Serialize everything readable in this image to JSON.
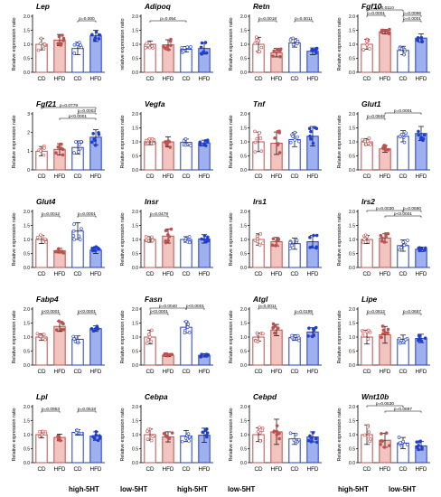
{
  "colors": {
    "cd_high": "#c0504d",
    "hfd_high": "#c0504d",
    "hfd_high_fill": "#f2c4c0",
    "cd_low": "#1f3fd0",
    "hfd_low": "#1f3fd0",
    "hfd_low_fill": "#9fb0f0",
    "axis": "#000000"
  },
  "group_labels": [
    "high-5HT",
    "low-5HT"
  ],
  "chart_data": [
    {
      "type": "bar",
      "title": "Lep",
      "ylabel": "Relative expression ratio",
      "categories": [
        "CD",
        "HFD",
        "CD",
        "HFD"
      ],
      "ylim": [
        0,
        2
      ],
      "yticks": [
        "0.0",
        "0.5",
        "1.0",
        "1.5",
        "2.0"
      ],
      "values": [
        1.0,
        1.15,
        0.85,
        1.3
      ],
      "errors": [
        0.2,
        0.2,
        0.22,
        0.2
      ],
      "annotations": [
        {
          "from": 2,
          "to": 3,
          "label": "p=0.000",
          "level": 0
        }
      ]
    },
    {
      "type": "bar",
      "title": "Adipoq",
      "ylabel": "relative expression ratio",
      "categories": [
        "CD",
        "HFD",
        "CD",
        "HFD"
      ],
      "ylim": [
        0,
        2
      ],
      "yticks": [
        "0.0",
        "0.5",
        "1.0",
        "1.5",
        "2.0"
      ],
      "values": [
        1.0,
        0.98,
        0.82,
        0.85
      ],
      "errors": [
        0.12,
        0.18,
        0.1,
        0.2
      ],
      "annotations": [
        {
          "from": 0,
          "to": 2,
          "label": "p=0.054",
          "level": 0
        }
      ]
    },
    {
      "type": "bar",
      "title": "Retn",
      "ylabel": "Relative expression ratio",
      "categories": [
        "CD",
        "HFD",
        "CD",
        "HFD"
      ],
      "ylim": [
        0,
        2
      ],
      "yticks": [
        "0.0",
        "0.5",
        "1.0",
        "1.5",
        "2.0"
      ],
      "values": [
        1.0,
        0.7,
        1.05,
        0.75
      ],
      "errors": [
        0.25,
        0.15,
        0.15,
        0.12
      ],
      "annotations": [
        {
          "from": 0,
          "to": 1,
          "label": "p=0.0018",
          "level": 0
        },
        {
          "from": 2,
          "to": 3,
          "label": "p=0.0011",
          "level": 0
        }
      ]
    },
    {
      "type": "bar",
      "title": "Fgf10",
      "ylabel": "Relative expression ratio",
      "categories": [
        "CD",
        "HFD",
        "CD",
        "HFD"
      ],
      "ylim": [
        0,
        2
      ],
      "yticks": [
        "0.0",
        "0.5",
        "1.0",
        "1.5",
        "2.0"
      ],
      "values": [
        1.0,
        1.45,
        0.78,
        1.22
      ],
      "errors": [
        0.18,
        0.08,
        0.15,
        0.15
      ],
      "annotations": [
        {
          "from": 0,
          "to": 2,
          "label": "p=0.0110",
          "level": 2
        },
        {
          "from": 0,
          "to": 1,
          "label": "p=0.0001",
          "level": 1
        },
        {
          "from": 2,
          "to": 3,
          "label": "p=0.0096",
          "level": 1
        },
        {
          "from": 2,
          "to": 3,
          "label": "p=0.0001",
          "level": 0
        }
      ]
    },
    {
      "type": "bar",
      "title": "Fgf21",
      "ylabel": "Relative expression ratio",
      "categories": [
        "CD",
        "HFD",
        "CD",
        "HFD"
      ],
      "ylim": [
        0,
        3
      ],
      "yticks": [
        "0",
        "1",
        "2",
        "3"
      ],
      "values": [
        1.0,
        1.1,
        1.2,
        1.75
      ],
      "errors": [
        0.25,
        0.3,
        0.35,
        0.4
      ],
      "annotations": [
        {
          "from": 0,
          "to": 3,
          "label": "p=0.0779",
          "level": 2
        },
        {
          "from": 2,
          "to": 3,
          "label": "p=0.0003",
          "level": 1
        },
        {
          "from": 1,
          "to": 3,
          "label": "p<0.0001",
          "level": 0
        }
      ]
    },
    {
      "type": "bar",
      "title": "Vegfa",
      "ylabel": "Relative expression ratio",
      "categories": [
        "CD",
        "HFD",
        "CD",
        "HFD"
      ],
      "ylim": [
        0,
        2
      ],
      "yticks": [
        "0.0",
        "0.5",
        "1.0",
        "1.5",
        "2.0"
      ],
      "values": [
        1.0,
        1.0,
        0.98,
        0.96
      ],
      "errors": [
        0.1,
        0.18,
        0.12,
        0.1
      ],
      "annotations": []
    },
    {
      "type": "bar",
      "title": "Tnf",
      "ylabel": "Relative expression ratio",
      "categories": [
        "CD",
        "HFD",
        "CD",
        "HFD"
      ],
      "ylim": [
        0,
        2
      ],
      "yticks": [
        "0.0",
        "0.5",
        "1.0",
        "1.5",
        "2.0"
      ],
      "values": [
        1.0,
        0.95,
        1.08,
        1.2
      ],
      "errors": [
        0.35,
        0.4,
        0.25,
        0.35
      ],
      "annotations": []
    },
    {
      "type": "bar",
      "title": "Glut1",
      "ylabel": "Relative expression ratio",
      "categories": [
        "CD",
        "HFD",
        "CD",
        "HFD"
      ],
      "ylim": [
        0,
        2
      ],
      "yticks": [
        "0.0",
        "0.5",
        "1.0",
        "1.5",
        "2.0"
      ],
      "values": [
        1.0,
        0.75,
        1.2,
        1.3
      ],
      "errors": [
        0.12,
        0.12,
        0.2,
        0.25
      ],
      "annotations": [
        {
          "from": 0,
          "to": 1,
          "label": "p=0.0848",
          "level": 0
        },
        {
          "from": 1,
          "to": 3,
          "label": "p=0.0001",
          "level": 1
        }
      ]
    },
    {
      "type": "bar",
      "title": "Glut4",
      "ylabel": "Relative expression ratio",
      "categories": [
        "CD",
        "HFD",
        "CD",
        "HFD"
      ],
      "ylim": [
        0,
        2
      ],
      "yticks": [
        "0.0",
        "0.5",
        "1.0",
        "1.5",
        "2.0"
      ],
      "values": [
        1.0,
        0.6,
        1.3,
        0.62
      ],
      "errors": [
        0.15,
        0.08,
        0.3,
        0.12
      ],
      "annotations": [
        {
          "from": 0,
          "to": 1,
          "label": "p=0.0012",
          "level": 0
        },
        {
          "from": 2,
          "to": 3,
          "label": "p=0.0001",
          "level": 0
        }
      ]
    },
    {
      "type": "bar",
      "title": "Insr",
      "ylabel": "Relative expression ratio",
      "categories": [
        "CD",
        "HFD",
        "CD",
        "HFD"
      ],
      "ylim": [
        0,
        2
      ],
      "yticks": [
        "0.0",
        "0.5",
        "1.0",
        "1.5",
        "2.0"
      ],
      "values": [
        1.0,
        1.12,
        1.0,
        1.02
      ],
      "errors": [
        0.1,
        0.25,
        0.1,
        0.15
      ],
      "annotations": [
        {
          "from": 0,
          "to": 1,
          "label": "p=0.0479",
          "level": 0
        }
      ]
    },
    {
      "type": "bar",
      "title": "Irs1",
      "ylabel": "Relative expression ratio",
      "categories": [
        "CD",
        "HFD",
        "CD",
        "HFD"
      ],
      "ylim": [
        0,
        2
      ],
      "yticks": [
        "0.0",
        "0.5",
        "1.0",
        "1.5",
        "2.0"
      ],
      "values": [
        1.0,
        0.92,
        0.85,
        0.92
      ],
      "errors": [
        0.2,
        0.15,
        0.2,
        0.22
      ],
      "annotations": []
    },
    {
      "type": "bar",
      "title": "Irs2",
      "ylabel": "Relative expression ratio",
      "categories": [
        "CD",
        "HFD",
        "CD",
        "HFD"
      ],
      "ylim": [
        0,
        2
      ],
      "yticks": [
        "0.0",
        "0.5",
        "1.0",
        "1.5",
        "2.0"
      ],
      "values": [
        1.0,
        1.05,
        0.78,
        0.65
      ],
      "errors": [
        0.15,
        0.15,
        0.2,
        0.08
      ],
      "annotations": [
        {
          "from": 0,
          "to": 2,
          "label": "p=0.0030",
          "level": 1
        },
        {
          "from": 2,
          "to": 3,
          "label": "p=0.0680",
          "level": 1
        },
        {
          "from": 1,
          "to": 3,
          "label": "p<0.0001",
          "level": 0
        }
      ]
    },
    {
      "type": "bar",
      "title": "Fabp4",
      "ylabel": "Relative expression ratio",
      "categories": [
        "CD",
        "HFD",
        "CD",
        "HFD"
      ],
      "ylim": [
        0,
        2
      ],
      "yticks": [
        "0.0",
        "0.5",
        "1.0",
        "1.5",
        "2.0"
      ],
      "values": [
        1.0,
        1.38,
        0.92,
        1.3
      ],
      "errors": [
        0.12,
        0.18,
        0.12,
        0.1
      ],
      "annotations": [
        {
          "from": 0,
          "to": 1,
          "label": "p<0.0001",
          "level": 0
        },
        {
          "from": 2,
          "to": 3,
          "label": "p<0.0001",
          "level": 0
        }
      ]
    },
    {
      "type": "bar",
      "title": "Fasn",
      "ylabel": "Relative expression ratio",
      "categories": [
        "CD",
        "HFD",
        "CD",
        "HFD"
      ],
      "ylim": [
        0,
        2
      ],
      "yticks": [
        "0.0",
        "0.5",
        "1.0",
        "1.5",
        "2.0"
      ],
      "values": [
        1.0,
        0.35,
        1.35,
        0.35
      ],
      "errors": [
        0.25,
        0.05,
        0.2,
        0.06
      ],
      "annotations": [
        {
          "from": 0,
          "to": 2,
          "label": "p=0.0040",
          "level": 1
        },
        {
          "from": 2,
          "to": 3,
          "label": "p<0.0001",
          "level": 1
        },
        {
          "from": 0,
          "to": 1,
          "label": "p<0.0001",
          "level": 0
        }
      ]
    },
    {
      "type": "bar",
      "title": "Atgl",
      "ylabel": "Relative expression ratio",
      "categories": [
        "CD",
        "HFD",
        "CD",
        "HFD"
      ],
      "ylim": [
        0,
        2
      ],
      "yticks": [
        "0.0",
        "0.5",
        "1.0",
        "1.5",
        "2.0"
      ],
      "values": [
        1.0,
        1.25,
        0.98,
        1.18
      ],
      "errors": [
        0.15,
        0.2,
        0.1,
        0.15
      ],
      "annotations": [
        {
          "from": 0,
          "to": 1,
          "label": "p=0.0011",
          "level": 1
        },
        {
          "from": 2,
          "to": 3,
          "label": "p=0.0195",
          "level": 0
        }
      ]
    },
    {
      "type": "bar",
      "title": "Lipe",
      "ylabel": "Relative expression ratio",
      "categories": [
        "CD",
        "HFD",
        "CD",
        "HFD"
      ],
      "ylim": [
        0,
        2
      ],
      "yticks": [
        "0.0",
        "0.5",
        "1.0",
        "1.5",
        "2.0"
      ],
      "values": [
        1.0,
        1.08,
        0.92,
        0.95
      ],
      "errors": [
        0.25,
        0.3,
        0.15,
        0.15
      ],
      "annotations": [
        {
          "from": 0,
          "to": 1,
          "label": "p=0.0812",
          "level": 0
        },
        {
          "from": 2,
          "to": 3,
          "label": "p=0.0657",
          "level": 0
        }
      ]
    },
    {
      "type": "bar",
      "title": "Lpl",
      "ylabel": "Relative expression ratio",
      "categories": [
        "CD",
        "HFD",
        "CD",
        "HFD"
      ],
      "ylim": [
        0,
        2
      ],
      "yticks": [
        "0.0",
        "0.5",
        "1.0",
        "1.5",
        "2.0"
      ],
      "values": [
        1.0,
        0.9,
        1.08,
        0.95
      ],
      "errors": [
        0.12,
        0.12,
        0.1,
        0.15
      ],
      "annotations": [
        {
          "from": 0,
          "to": 1,
          "label": "p=0.0953",
          "level": 0
        },
        {
          "from": 2,
          "to": 3,
          "label": "p=0.0518",
          "level": 0
        }
      ]
    },
    {
      "type": "bar",
      "title": "Cebpa",
      "ylabel": "Relative expression ratio",
      "categories": [
        "CD",
        "HFD",
        "CD",
        "HFD"
      ],
      "ylim": [
        0,
        2
      ],
      "yticks": [
        "0.0",
        "0.5",
        "1.0",
        "1.5",
        "2.0"
      ],
      "values": [
        1.0,
        0.92,
        0.95,
        0.98
      ],
      "errors": [
        0.2,
        0.18,
        0.2,
        0.25
      ],
      "annotations": []
    },
    {
      "type": "bar",
      "title": "Cebpd",
      "ylabel": "Relative expression ratio",
      "categories": [
        "CD",
        "HFD",
        "CD",
        "HFD"
      ],
      "ylim": [
        0,
        2
      ],
      "yticks": [
        "0.0",
        "0.5",
        "1.0",
        "1.5",
        "2.0"
      ],
      "values": [
        1.0,
        1.1,
        0.85,
        0.92
      ],
      "errors": [
        0.25,
        0.45,
        0.2,
        0.18
      ],
      "annotations": []
    },
    {
      "type": "bar",
      "title": "Wnt10b",
      "ylabel": "Relative expression ratio",
      "categories": [
        "CD",
        "HFD",
        "CD",
        "HFD"
      ],
      "ylim": [
        0,
        2
      ],
      "yticks": [
        "0.0",
        "0.5",
        "1.0",
        "1.5",
        "2.0"
      ],
      "values": [
        1.0,
        0.8,
        0.7,
        0.6
      ],
      "errors": [
        0.35,
        0.25,
        0.2,
        0.15
      ],
      "annotations": [
        {
          "from": 0,
          "to": 2,
          "label": "p=0.0530",
          "level": 1
        },
        {
          "from": 1,
          "to": 3,
          "label": "p=0.0897",
          "level": 0
        }
      ]
    }
  ]
}
